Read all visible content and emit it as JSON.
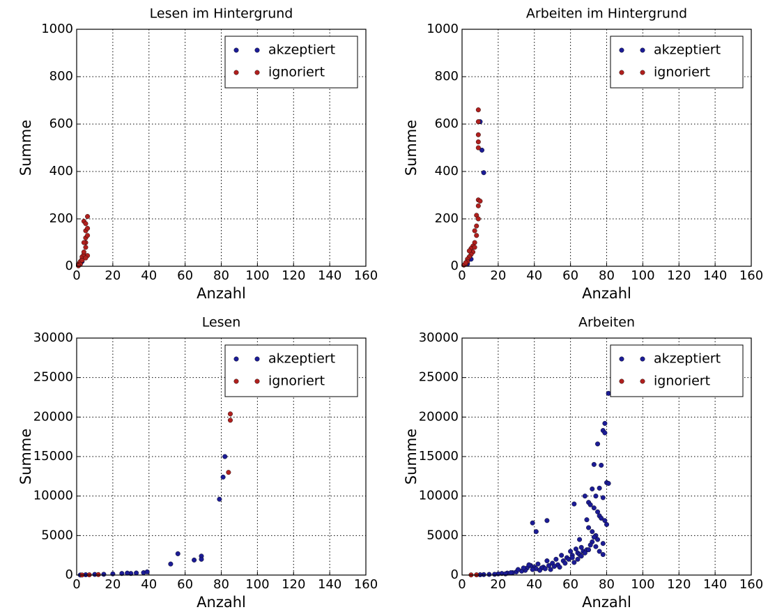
{
  "chart_data": [
    {
      "type": "scatter",
      "title": "Lesen im Hintergrund",
      "x_label": "Anzahl",
      "y_label": "Summe",
      "xlim": [
        0,
        160
      ],
      "ylim": [
        0,
        1000
      ],
      "xticks": [
        0,
        20,
        40,
        60,
        80,
        100,
        120,
        140,
        160
      ],
      "yticks": [
        0,
        200,
        400,
        600,
        800,
        1000
      ],
      "grid": true,
      "legend": "upper right",
      "series": [
        {
          "name": "akzeptiert",
          "color": "#1c1c96",
          "x": [
            1,
            2,
            3
          ],
          "values": [
            3,
            10,
            20
          ]
        },
        {
          "name": "ignoriert",
          "color": "#b0201e",
          "x": [
            1,
            1,
            2,
            2,
            3,
            3,
            4,
            4,
            5,
            5,
            4,
            5,
            6,
            5,
            6,
            4,
            5,
            6,
            2,
            3,
            1,
            6,
            5
          ],
          "values": [
            5,
            10,
            15,
            20,
            30,
            40,
            50,
            60,
            80,
            100,
            100,
            120,
            130,
            150,
            160,
            190,
            180,
            210,
            8,
            25,
            2,
            45,
            35
          ]
        }
      ]
    },
    {
      "type": "scatter",
      "title": "Arbeiten im Hintergrund",
      "x_label": "Anzahl",
      "y_label": "Summe",
      "xlim": [
        0,
        160
      ],
      "ylim": [
        0,
        1000
      ],
      "xticks": [
        0,
        20,
        40,
        60,
        80,
        100,
        120,
        140,
        160
      ],
      "yticks": [
        0,
        200,
        400,
        600,
        800,
        1000
      ],
      "grid": true,
      "legend": "upper right",
      "series": [
        {
          "name": "akzeptiert",
          "color": "#1c1c96",
          "x": [
            10,
            11,
            12,
            3,
            5
          ],
          "values": [
            610,
            490,
            395,
            10,
            30
          ]
        },
        {
          "name": "ignoriert",
          "color": "#b0201e",
          "x": [
            9,
            9,
            9,
            9,
            9,
            9,
            10,
            9,
            8,
            9,
            8,
            7,
            8,
            7,
            6,
            5,
            6,
            5,
            4,
            3,
            3,
            2,
            1,
            2,
            4,
            7
          ],
          "values": [
            660,
            610,
            555,
            525,
            500,
            280,
            275,
            255,
            215,
            200,
            170,
            150,
            130,
            100,
            85,
            75,
            60,
            50,
            40,
            30,
            20,
            10,
            5,
            15,
            65,
            80
          ]
        }
      ]
    },
    {
      "type": "scatter",
      "title": "Lesen",
      "x_label": "Anzahl",
      "y_label": "Summe",
      "xlim": [
        0,
        160
      ],
      "ylim": [
        0,
        30000
      ],
      "xticks": [
        0,
        20,
        40,
        60,
        80,
        100,
        120,
        140,
        160
      ],
      "yticks": [
        0,
        5000,
        10000,
        15000,
        20000,
        25000,
        30000
      ],
      "grid": true,
      "legend": "upper right",
      "series": [
        {
          "name": "akzeptiert",
          "color": "#1c1c96",
          "x": [
            79,
            81,
            82,
            52,
            56,
            65,
            69,
            69,
            37,
            39,
            30,
            25,
            20,
            15,
            10,
            5,
            2,
            28,
            33
          ],
          "values": [
            9600,
            12400,
            15000,
            1400,
            2700,
            1900,
            2400,
            2000,
            300,
            400,
            200,
            200,
            150,
            100,
            80,
            40,
            10,
            250,
            260
          ]
        },
        {
          "name": "ignoriert",
          "color": "#b0201e",
          "x": [
            84,
            85,
            85,
            3,
            7,
            12
          ],
          "values": [
            13000,
            20400,
            19600,
            10,
            30,
            60
          ]
        }
      ]
    },
    {
      "type": "scatter",
      "title": "Arbeiten",
      "x_label": "Anzahl",
      "y_label": "Summe",
      "xlim": [
        0,
        160
      ],
      "ylim": [
        0,
        30000
      ],
      "xticks": [
        0,
        20,
        40,
        60,
        80,
        100,
        120,
        140,
        160
      ],
      "yticks": [
        0,
        5000,
        10000,
        15000,
        20000,
        25000,
        30000
      ],
      "grid": true,
      "legend": "upper right",
      "series": [
        {
          "name": "akzeptiert",
          "color": "#1c1c96",
          "x": [
            81,
            79,
            78,
            79,
            75,
            73,
            77,
            80,
            81,
            76,
            72,
            74,
            78,
            70,
            71,
            73,
            75,
            76,
            77,
            79,
            80,
            68,
            69,
            70,
            72,
            74,
            75,
            78,
            65,
            66,
            67,
            62,
            63,
            64,
            60,
            61,
            58,
            59,
            55,
            56,
            57,
            52,
            53,
            50,
            48,
            47,
            45,
            44,
            42,
            40,
            41,
            38,
            39,
            36,
            35,
            33,
            30,
            28,
            25,
            22,
            20,
            18,
            15,
            12,
            10,
            39,
            41,
            47,
            61,
            65,
            69,
            72,
            74,
            76,
            78,
            62,
            64,
            66,
            68,
            70,
            71,
            73,
            54,
            51,
            49,
            46,
            43,
            37,
            34,
            31,
            27,
            24
          ],
          "values": [
            23000,
            19200,
            18300,
            18000,
            16600,
            14000,
            13900,
            11700,
            11600,
            11000,
            10900,
            10000,
            9800,
            9200,
            8900,
            8500,
            8000,
            7500,
            7200,
            6900,
            6400,
            10000,
            7000,
            6000,
            5500,
            5000,
            4500,
            4000,
            4500,
            3500,
            3000,
            9000,
            3300,
            2800,
            3000,
            2500,
            2200,
            2000,
            2500,
            1800,
            1500,
            2000,
            1300,
            1500,
            1200,
            1800,
            1000,
            900,
            1400,
            1000,
            800,
            1200,
            700,
            900,
            600,
            500,
            400,
            300,
            250,
            200,
            150,
            100,
            80,
            60,
            40,
            6600,
            5500,
            6900,
            2200,
            2600,
            3200,
            4200,
            3600,
            3000,
            2600,
            1600,
            2000,
            2400,
            2800,
            3200,
            3800,
            4800,
            1000,
            1100,
            700,
            800,
            600,
            1300,
            900,
            700,
            300,
            150
          ]
        },
        {
          "name": "ignoriert",
          "color": "#b0201e",
          "x": [
            5,
            8
          ],
          "values": [
            20,
            30
          ]
        }
      ]
    }
  ]
}
